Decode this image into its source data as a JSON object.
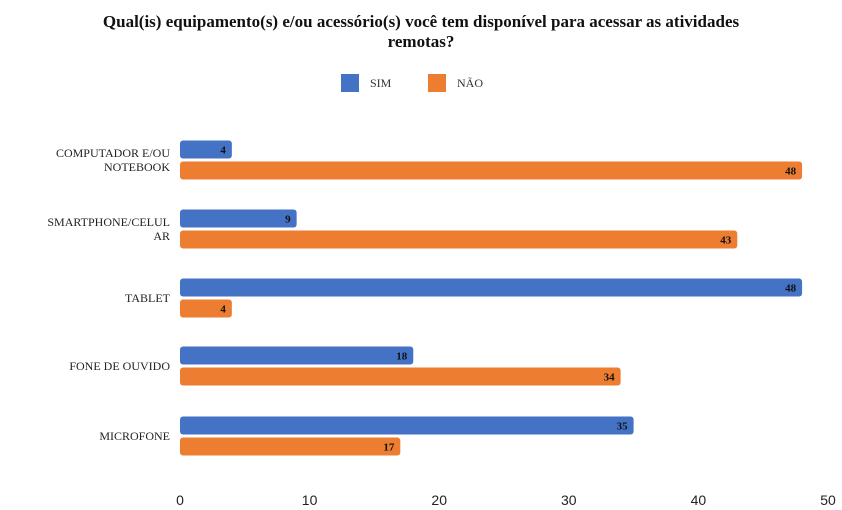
{
  "chart_data": {
    "type": "bar",
    "orientation": "horizontal",
    "title_lines": [
      "Qual(is) equipamento(s) e/ou acessório(s) você tem disponível para acessar as atividades",
      "remotas?"
    ],
    "categories": [
      [
        "COMPUTADOR E/OU",
        "NOTEBOOK"
      ],
      [
        "SMARTPHONE/CELUL",
        "AR"
      ],
      [
        "TABLET"
      ],
      [
        "FONE DE OUVIDO"
      ],
      [
        "MICROFONE"
      ]
    ],
    "series": [
      {
        "name": "SIM",
        "color": "#4472c4",
        "values": [
          4,
          9,
          48,
          18,
          35
        ]
      },
      {
        "name": "NÃO",
        "color": "#ed7d31",
        "values": [
          48,
          43,
          4,
          34,
          17
        ]
      }
    ],
    "xlim": [
      0,
      50
    ],
    "xticks": [
      0,
      10,
      20,
      30,
      40,
      50
    ],
    "legend_position": "top",
    "grid": false,
    "data_labels": true
  }
}
